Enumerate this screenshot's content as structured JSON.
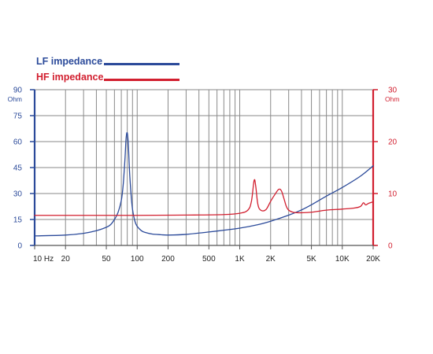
{
  "colors": {
    "lf": "#2b4a9a",
    "hf": "#d21f2f",
    "grid": "#8a8a8a",
    "axis_text": "#222222"
  },
  "chart_data": {
    "type": "line",
    "title": "",
    "x_scale": "log",
    "xlim": [
      10,
      20000
    ],
    "x_tick_labels": [
      {
        "value": 10,
        "label": "10 Hz"
      },
      {
        "value": 20,
        "label": "20"
      },
      {
        "value": 50,
        "label": "50"
      },
      {
        "value": 100,
        "label": "100"
      },
      {
        "value": 200,
        "label": "200"
      },
      {
        "value": 500,
        "label": "500"
      },
      {
        "value": 1000,
        "label": "1K"
      },
      {
        "value": 2000,
        "label": "2K"
      },
      {
        "value": 5000,
        "label": "5K"
      },
      {
        "value": 10000,
        "label": "10K"
      },
      {
        "value": 20000,
        "label": "20K"
      }
    ],
    "y_left": {
      "unit": "Ohm",
      "range": [
        0,
        90
      ],
      "ticks": [
        "0",
        "15",
        "30",
        "45",
        "60",
        "75",
        "90"
      ]
    },
    "y_right": {
      "unit": "Ohm",
      "range": [
        0,
        30
      ],
      "ticks": [
        "0",
        "10",
        "20",
        "30"
      ]
    },
    "grid": true,
    "legend_position": "top-left",
    "series": [
      {
        "name": "LF impedance",
        "axis": "left",
        "color": "#2b4a9a",
        "x": [
          10,
          20,
          30,
          40,
          50,
          55,
          60,
          65,
          70,
          73,
          76,
          78,
          80,
          82,
          84,
          87,
          90,
          95,
          100,
          110,
          120,
          140,
          170,
          200,
          300,
          500,
          700,
          1000,
          1500,
          2000,
          3000,
          4000,
          5000,
          7000,
          10000,
          15000,
          20000
        ],
        "y": [
          5.5,
          6.0,
          7.0,
          8.5,
          10.5,
          12.0,
          15.0,
          19.0,
          26.0,
          35.0,
          50.0,
          62.0,
          65.0,
          58.0,
          44.0,
          30.0,
          21.0,
          14.0,
          11.0,
          8.5,
          7.5,
          6.6,
          6.2,
          6.0,
          6.4,
          7.8,
          8.8,
          10.0,
          12.0,
          14.0,
          17.5,
          20.5,
          23.5,
          28.5,
          33.5,
          40.0,
          46.0
        ]
      },
      {
        "name": "HF impedance",
        "axis": "right",
        "color": "#d21f2f",
        "x": [
          10,
          100,
          300,
          700,
          1000,
          1200,
          1300,
          1380,
          1430,
          1500,
          1600,
          1800,
          2000,
          2200,
          2400,
          2550,
          2700,
          2850,
          3000,
          3300,
          3700,
          4000,
          5000,
          7000,
          10000,
          13000,
          15000,
          16000,
          16500,
          17000,
          18000,
          20000
        ],
        "y": [
          5.8,
          5.8,
          5.85,
          5.95,
          6.2,
          6.8,
          8.5,
          12.5,
          11.5,
          8.0,
          6.8,
          6.9,
          8.5,
          9.8,
          10.8,
          10.5,
          9.0,
          7.5,
          6.8,
          6.4,
          6.3,
          6.3,
          6.4,
          6.8,
          7.0,
          7.2,
          7.5,
          8.2,
          8.0,
          7.8,
          8.1,
          8.4
        ]
      }
    ]
  }
}
